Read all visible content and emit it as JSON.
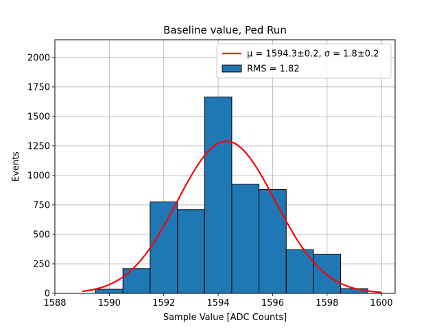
{
  "chart_data": {
    "type": "bar",
    "title": "Baseline value, Ped Run",
    "xlabel": "Sample Value [ADC Counts]",
    "ylabel": "Events",
    "xlim": [
      1588,
      1600.5
    ],
    "ylim": [
      0,
      2150
    ],
    "xticks": [
      1588,
      1590,
      1592,
      1594,
      1596,
      1598,
      1600
    ],
    "yticks": [
      0,
      250,
      500,
      750,
      1000,
      1250,
      1500,
      1750,
      2000
    ],
    "grid": true,
    "legend_position": "top-right",
    "bin_edges": [
      1588.5,
      1589.5,
      1590.5,
      1591.5,
      1592.5,
      1593.5,
      1594.5,
      1595.5,
      1596.5,
      1597.5,
      1598.5,
      1599.5
    ],
    "counts": [
      0,
      35,
      210,
      775,
      710,
      1665,
      925,
      880,
      370,
      330,
      40
    ],
    "bar_color": "#1f77b4",
    "bar_edge_color": "#000000",
    "fit": {
      "type": "gaussian",
      "mu": 1594.3,
      "sigma": 1.8,
      "amplitude": 1290,
      "x_range": [
        1589,
        1600
      ],
      "color": "#ff0000"
    },
    "legend": [
      {
        "label": "μ = 1594.3±0.2, σ = 1.8±0.2",
        "kind": "line",
        "color": "#ff0000"
      },
      {
        "label": "RMS = 1.82",
        "kind": "patch",
        "color": "#1f77b4"
      }
    ]
  }
}
